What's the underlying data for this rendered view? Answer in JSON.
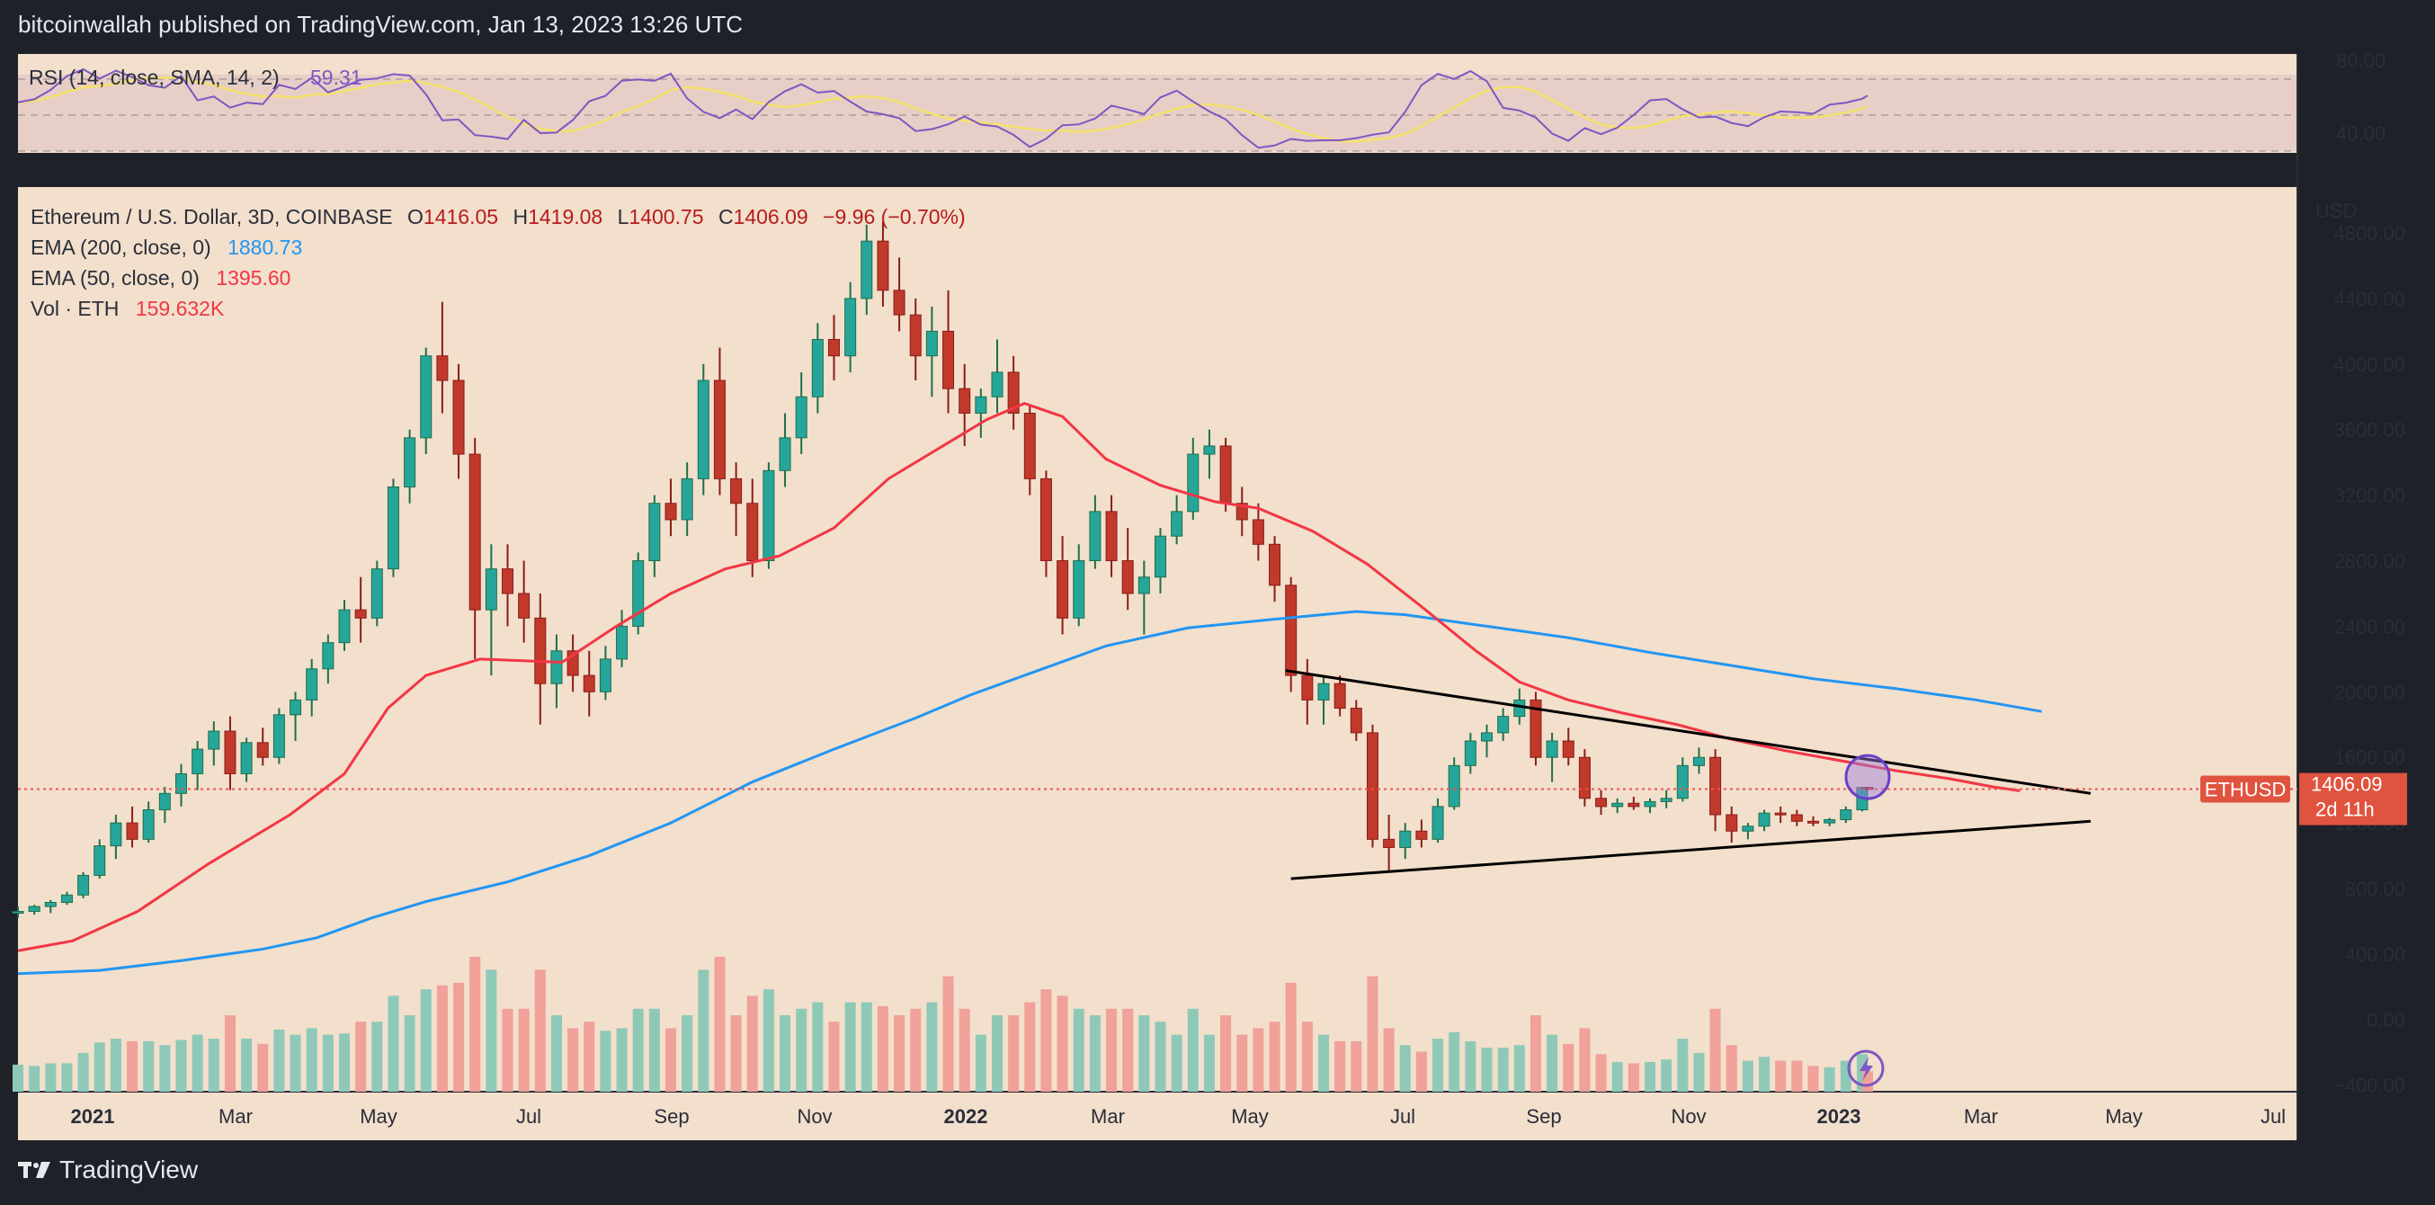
{
  "header": {
    "text": "bitcoinwallah published on TradingView.com, Jan 13, 2023 13:26 UTC"
  },
  "footer": {
    "brand": "TradingView",
    "logo_icon": "tradingview-logo-icon"
  },
  "colors": {
    "background": "#f2dfcc",
    "frame": "#1f2129",
    "up": "#26a69a",
    "down": "#ef5350",
    "ema200": "#2196f3",
    "ema50": "#f23645",
    "rsi": "#7e57c2",
    "rsi_ma": "#f5e16b",
    "trendline": "#000000",
    "price_line": "#ef5350"
  },
  "rsi_panel": {
    "legend": {
      "name": "RSI (14, close, SMA, 14, 2)",
      "value": "59.31"
    },
    "ticks": [
      "80.00",
      "40.00"
    ],
    "band": [
      30,
      70
    ],
    "ylim": [
      16,
      94
    ]
  },
  "legend": {
    "symbol": "Ethereum / U.S. Dollar, 3D, COINBASE",
    "o_label": "O",
    "o": "1416.05",
    "h_label": "H",
    "h": "1419.08",
    "l_label": "L",
    "l": "1400.75",
    "c_label": "C",
    "c": "1406.09",
    "change": "−9.96 (−0.70%)",
    "ema200_label": "EMA (200, close, 0)",
    "ema200_value": "1880.73",
    "ema50_label": "EMA (50, close, 0)",
    "ema50_value": "1395.60",
    "vol_label": "Vol · ETH",
    "vol_value": "159.632K"
  },
  "price_axis": {
    "unit": "USD",
    "ticks": [
      "4800.00",
      "4400.00",
      "4000.00",
      "3600.00",
      "3200.00",
      "2800.00",
      "2400.00",
      "2000.00",
      "1600.00",
      "1200.00",
      "800.00",
      "400.00",
      "0.00",
      "−400.00"
    ],
    "tick_values": [
      4800,
      4400,
      4000,
      3600,
      3200,
      2800,
      2400,
      2000,
      1600,
      1200,
      800,
      400,
      0,
      -400
    ]
  },
  "price_label": {
    "symbol": "ETHUSD",
    "price": "1406.09",
    "countdown": "2d 11h"
  },
  "time_axis": {
    "ticks": [
      "2021",
      "Mar",
      "May",
      "Jul",
      "Sep",
      "Nov",
      "2022",
      "Mar",
      "May",
      "Jul",
      "Sep",
      "Nov",
      "2023",
      "Mar",
      "May",
      "Jul"
    ]
  },
  "chart_data": {
    "type": "candlestick",
    "title": "Ethereum / U.S. Dollar, 3D, COINBASE",
    "ylim": [
      -440,
      5080
    ],
    "x_index_range": [
      0,
      250
    ],
    "month_ticks_index": [
      3,
      23,
      43,
      64,
      84,
      104,
      124,
      143,
      164,
      184,
      205,
      225,
      245
    ],
    "series": [
      {
        "name": "EMA (200, close, 0)",
        "points": [
          [
            0,
            280
          ],
          [
            15,
            300
          ],
          [
            30,
            360
          ],
          [
            45,
            430
          ],
          [
            55,
            500
          ],
          [
            65,
            620
          ],
          [
            75,
            720
          ],
          [
            90,
            840
          ],
          [
            105,
            1000
          ],
          [
            120,
            1200
          ],
          [
            135,
            1450
          ],
          [
            150,
            1650
          ],
          [
            165,
            1840
          ],
          [
            175,
            1980
          ],
          [
            185,
            2100
          ],
          [
            200,
            2280
          ],
          [
            215,
            2390
          ],
          [
            230,
            2440
          ],
          [
            246,
            2490
          ],
          [
            255,
            2470
          ],
          [
            270,
            2400
          ],
          [
            285,
            2330
          ],
          [
            300,
            2240
          ],
          [
            315,
            2160
          ],
          [
            330,
            2080
          ],
          [
            345,
            2020
          ],
          [
            360,
            1950
          ],
          [
            372,
            1880
          ]
        ]
      },
      {
        "name": "EMA (50, close, 0)",
        "points": [
          [
            0,
            420
          ],
          [
            10,
            480
          ],
          [
            22,
            660
          ],
          [
            35,
            950
          ],
          [
            50,
            1250
          ],
          [
            60,
            1500
          ],
          [
            68,
            1900
          ],
          [
            75,
            2100
          ],
          [
            85,
            2200
          ],
          [
            100,
            2180
          ],
          [
            110,
            2400
          ],
          [
            120,
            2600
          ],
          [
            130,
            2750
          ],
          [
            140,
            2830
          ],
          [
            150,
            3000
          ],
          [
            160,
            3300
          ],
          [
            170,
            3500
          ],
          [
            178,
            3660
          ],
          [
            185,
            3760
          ],
          [
            192,
            3680
          ],
          [
            200,
            3420
          ],
          [
            210,
            3260
          ],
          [
            220,
            3160
          ],
          [
            228,
            3120
          ],
          [
            238,
            2980
          ],
          [
            248,
            2780
          ],
          [
            258,
            2520
          ],
          [
            268,
            2250
          ],
          [
            276,
            2060
          ],
          [
            285,
            1950
          ],
          [
            295,
            1870
          ],
          [
            305,
            1800
          ],
          [
            315,
            1710
          ],
          [
            325,
            1640
          ],
          [
            335,
            1580
          ],
          [
            345,
            1520
          ],
          [
            355,
            1470
          ],
          [
            363,
            1420
          ],
          [
            368,
            1396
          ]
        ]
      },
      {
        "name": "Vol · ETH",
        "approx_peak": "159.632K"
      }
    ],
    "candles_3d": [
      [
        0,
        650,
        690,
        620,
        660
      ],
      [
        3,
        660,
        700,
        640,
        690
      ],
      [
        6,
        690,
        730,
        650,
        715
      ],
      [
        9,
        715,
        780,
        700,
        760
      ],
      [
        12,
        760,
        900,
        740,
        880
      ],
      [
        15,
        880,
        1100,
        860,
        1060
      ],
      [
        18,
        1060,
        1250,
        980,
        1200
      ],
      [
        21,
        1200,
        1300,
        1050,
        1100
      ],
      [
        24,
        1100,
        1330,
        1080,
        1280
      ],
      [
        27,
        1280,
        1420,
        1200,
        1380
      ],
      [
        30,
        1380,
        1560,
        1300,
        1500
      ],
      [
        33,
        1500,
        1700,
        1400,
        1650
      ],
      [
        36,
        1650,
        1820,
        1550,
        1760
      ],
      [
        39,
        1760,
        1850,
        1400,
        1500
      ],
      [
        42,
        1500,
        1720,
        1450,
        1690
      ],
      [
        45,
        1690,
        1780,
        1550,
        1600
      ],
      [
        48,
        1600,
        1900,
        1560,
        1860
      ],
      [
        51,
        1860,
        2000,
        1700,
        1950
      ],
      [
        54,
        1950,
        2200,
        1850,
        2140
      ],
      [
        57,
        2140,
        2350,
        2050,
        2300
      ],
      [
        60,
        2300,
        2560,
        2250,
        2500
      ],
      [
        63,
        2500,
        2700,
        2300,
        2450
      ],
      [
        66,
        2450,
        2800,
        2400,
        2750
      ],
      [
        69,
        2750,
        3300,
        2700,
        3250
      ],
      [
        72,
        3250,
        3600,
        3150,
        3550
      ],
      [
        75,
        3550,
        4100,
        3450,
        4050
      ],
      [
        78,
        4050,
        4380,
        3700,
        3900
      ],
      [
        81,
        3900,
        4000,
        3300,
        3450
      ],
      [
        84,
        3450,
        3550,
        2200,
        2500
      ],
      [
        87,
        2500,
        2900,
        2100,
        2750
      ],
      [
        90,
        2750,
        2900,
        2400,
        2600
      ],
      [
        93,
        2600,
        2800,
        2300,
        2450
      ],
      [
        96,
        2450,
        2600,
        1800,
        2050
      ],
      [
        99,
        2050,
        2350,
        1900,
        2250
      ],
      [
        102,
        2250,
        2350,
        2000,
        2100
      ],
      [
        105,
        2100,
        2250,
        1850,
        2000
      ],
      [
        108,
        2000,
        2280,
        1950,
        2200
      ],
      [
        111,
        2200,
        2500,
        2150,
        2400
      ],
      [
        114,
        2400,
        2850,
        2350,
        2800
      ],
      [
        117,
        2800,
        3200,
        2700,
        3150
      ],
      [
        120,
        3150,
        3300,
        2950,
        3050
      ],
      [
        123,
        3050,
        3400,
        2950,
        3300
      ],
      [
        126,
        3300,
        4000,
        3200,
        3900
      ],
      [
        129,
        3900,
        4100,
        3200,
        3300
      ],
      [
        132,
        3300,
        3400,
        2950,
        3150
      ],
      [
        135,
        3150,
        3300,
        2700,
        2800
      ],
      [
        138,
        2800,
        3400,
        2750,
        3350
      ],
      [
        141,
        3350,
        3700,
        3250,
        3550
      ],
      [
        144,
        3550,
        3950,
        3450,
        3800
      ],
      [
        147,
        3800,
        4250,
        3700,
        4150
      ],
      [
        150,
        4150,
        4300,
        3900,
        4050
      ],
      [
        153,
        4050,
        4500,
        3950,
        4400
      ],
      [
        156,
        4400,
        4850,
        4300,
        4750
      ],
      [
        159,
        4750,
        4870,
        4350,
        4450
      ],
      [
        162,
        4450,
        4650,
        4200,
        4300
      ],
      [
        165,
        4300,
        4400,
        3900,
        4050
      ],
      [
        168,
        4050,
        4350,
        3800,
        4200
      ],
      [
        171,
        4200,
        4450,
        3700,
        3850
      ],
      [
        174,
        3850,
        4000,
        3500,
        3700
      ],
      [
        177,
        3700,
        3850,
        3550,
        3800
      ],
      [
        180,
        3800,
        4150,
        3700,
        3950
      ],
      [
        183,
        3950,
        4050,
        3600,
        3700
      ],
      [
        186,
        3700,
        3750,
        3200,
        3300
      ],
      [
        189,
        3300,
        3350,
        2700,
        2800
      ],
      [
        192,
        2800,
        2950,
        2350,
        2450
      ],
      [
        195,
        2450,
        2900,
        2400,
        2800
      ],
      [
        198,
        2800,
        3200,
        2750,
        3100
      ],
      [
        201,
        3100,
        3200,
        2700,
        2800
      ],
      [
        204,
        2800,
        3000,
        2500,
        2600
      ],
      [
        207,
        2600,
        2800,
        2350,
        2700
      ],
      [
        210,
        2700,
        3000,
        2600,
        2950
      ],
      [
        213,
        2950,
        3200,
        2900,
        3100
      ],
      [
        216,
        3100,
        3550,
        3050,
        3450
      ],
      [
        219,
        3450,
        3600,
        3300,
        3500
      ],
      [
        222,
        3500,
        3550,
        3100,
        3150
      ],
      [
        225,
        3150,
        3250,
        2950,
        3050
      ],
      [
        228,
        3050,
        3150,
        2800,
        2900
      ],
      [
        231,
        2900,
        2950,
        2550,
        2650
      ],
      [
        234,
        2650,
        2700,
        2000,
        2100
      ],
      [
        237,
        2100,
        2200,
        1800,
        1950
      ],
      [
        240,
        1950,
        2100,
        1800,
        2050
      ],
      [
        243,
        2050,
        2100,
        1850,
        1900
      ],
      [
        246,
        1900,
        1950,
        1700,
        1750
      ],
      [
        249,
        1750,
        1800,
        1050,
        1100
      ],
      [
        252,
        1100,
        1250,
        900,
        1050
      ],
      [
        255,
        1050,
        1200,
        980,
        1150
      ],
      [
        258,
        1150,
        1220,
        1050,
        1100
      ],
      [
        261,
        1100,
        1350,
        1080,
        1300
      ],
      [
        264,
        1300,
        1600,
        1280,
        1550
      ],
      [
        267,
        1550,
        1750,
        1500,
        1700
      ],
      [
        270,
        1700,
        1800,
        1600,
        1750
      ],
      [
        273,
        1750,
        1900,
        1700,
        1850
      ],
      [
        276,
        1850,
        2020,
        1800,
        1950
      ],
      [
        279,
        1950,
        2000,
        1550,
        1600
      ],
      [
        282,
        1600,
        1750,
        1450,
        1700
      ],
      [
        285,
        1700,
        1780,
        1550,
        1600
      ],
      [
        288,
        1600,
        1650,
        1300,
        1350
      ],
      [
        291,
        1350,
        1400,
        1250,
        1300
      ],
      [
        294,
        1300,
        1350,
        1260,
        1320
      ],
      [
        297,
        1320,
        1360,
        1280,
        1300
      ],
      [
        300,
        1300,
        1350,
        1260,
        1330
      ],
      [
        303,
        1330,
        1400,
        1290,
        1350
      ],
      [
        306,
        1350,
        1600,
        1330,
        1550
      ],
      [
        309,
        1550,
        1660,
        1500,
        1600
      ],
      [
        312,
        1600,
        1650,
        1150,
        1250
      ],
      [
        315,
        1250,
        1300,
        1080,
        1150
      ],
      [
        318,
        1150,
        1200,
        1100,
        1180
      ],
      [
        321,
        1180,
        1280,
        1150,
        1260
      ],
      [
        324,
        1260,
        1300,
        1200,
        1250
      ],
      [
        327,
        1250,
        1280,
        1180,
        1210
      ],
      [
        330,
        1210,
        1240,
        1180,
        1200
      ],
      [
        333,
        1200,
        1230,
        1180,
        1220
      ],
      [
        336,
        1220,
        1300,
        1200,
        1280
      ],
      [
        339,
        1280,
        1420,
        1270,
        1416
      ],
      [
        340,
        1416,
        1419,
        1400,
        1406
      ]
    ],
    "trendlines": [
      {
        "name": "descending-resistance",
        "from": [
          233,
          2130
        ],
        "to": [
          381,
          1380
        ]
      },
      {
        "name": "ascending-support",
        "from": [
          234,
          860
        ],
        "to": [
          381,
          1210
        ]
      }
    ],
    "marker": {
      "name": "breakout-circle",
      "at": [
        340,
        1480
      ]
    }
  }
}
